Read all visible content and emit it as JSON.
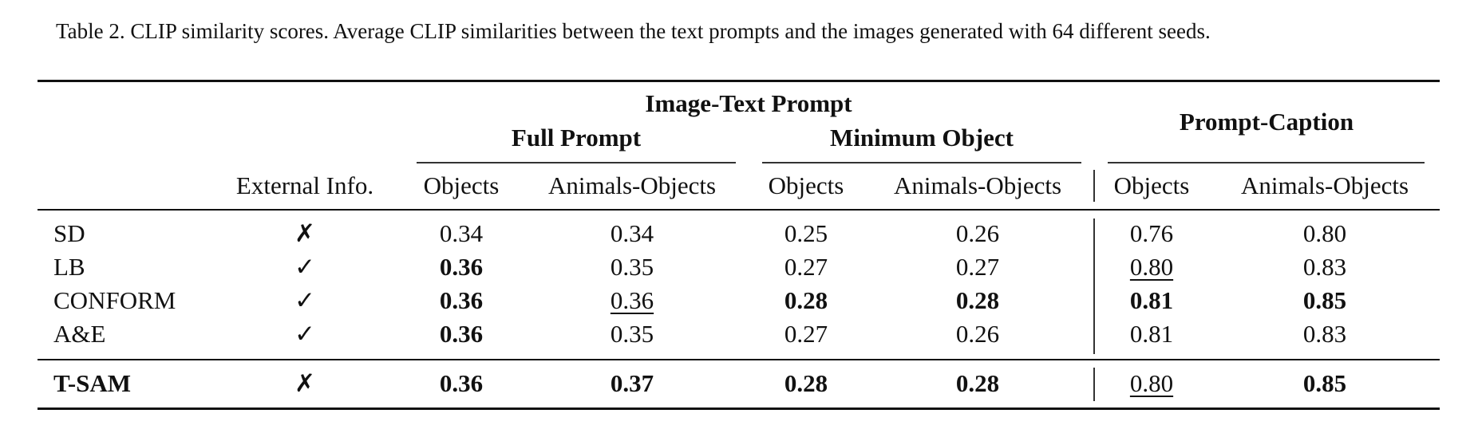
{
  "caption": "Table 2. CLIP similarity scores. Average CLIP similarities between the text prompts and the images generated with 64 different seeds.",
  "header": {
    "group_top": "Image-Text Prompt",
    "group_full": "Full Prompt",
    "group_min": "Minimum Object",
    "group_caption": "Prompt-Caption",
    "col_external": "External Info.",
    "sub_objects": "Objects",
    "sub_animals": "Animals-Objects"
  },
  "rows": [
    {
      "method": "SD",
      "ext": "✗",
      "cells": [
        {
          "v": "0.34"
        },
        {
          "v": "0.34"
        },
        {
          "v": "0.25"
        },
        {
          "v": "0.26"
        },
        {
          "v": "0.76"
        },
        {
          "v": "0.80"
        }
      ]
    },
    {
      "method": "LB",
      "ext": "✓",
      "cells": [
        {
          "v": "0.36",
          "b": true
        },
        {
          "v": "0.35"
        },
        {
          "v": "0.27"
        },
        {
          "v": "0.27"
        },
        {
          "v": "0.80",
          "u": true
        },
        {
          "v": "0.83"
        }
      ]
    },
    {
      "method": "CONFORM",
      "ext": "✓",
      "cells": [
        {
          "v": "0.36",
          "b": true
        },
        {
          "v": "0.36",
          "u": true
        },
        {
          "v": "0.28",
          "b": true
        },
        {
          "v": "0.28",
          "b": true
        },
        {
          "v": "0.81",
          "b": true
        },
        {
          "v": "0.85",
          "b": true
        }
      ]
    },
    {
      "method": "A&E",
      "ext": "✓",
      "cells": [
        {
          "v": "0.36",
          "b": true
        },
        {
          "v": "0.35"
        },
        {
          "v": "0.27"
        },
        {
          "v": "0.26"
        },
        {
          "v": "0.81"
        },
        {
          "v": "0.83"
        }
      ]
    },
    {
      "method": "T-SAM",
      "ext": "✗",
      "method_bold": true,
      "cells": [
        {
          "v": "0.36",
          "b": true
        },
        {
          "v": "0.37",
          "b": true
        },
        {
          "v": "0.28",
          "b": true
        },
        {
          "v": "0.28",
          "b": true
        },
        {
          "v": "0.80",
          "u": true
        },
        {
          "v": "0.85",
          "b": true
        }
      ]
    }
  ]
}
